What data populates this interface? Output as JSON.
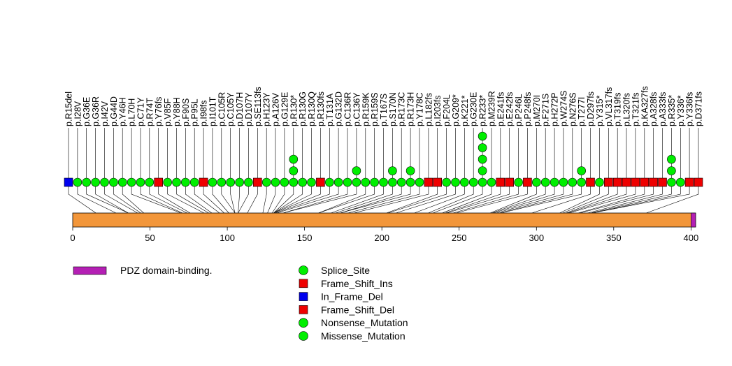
{
  "chart_data": {
    "type": "lollipop",
    "xlabel": "",
    "ylabel": "",
    "xlim": [
      0,
      403
    ],
    "ticks": [
      0,
      50,
      100,
      150,
      200,
      250,
      300,
      350,
      400
    ],
    "protein_length": 403,
    "domains": [
      {
        "name": "PDZ domain-binding.",
        "start": 400,
        "end": 403,
        "color": "#b41fb4"
      }
    ],
    "backbone_color": "#f2963a",
    "legend_mutations": [
      {
        "name": "Splice_Site",
        "shape": "circle",
        "color": "#00ee00"
      },
      {
        "name": "Frame_Shift_Ins",
        "shape": "square",
        "color": "#ee0000"
      },
      {
        "name": "In_Frame_Del",
        "shape": "square",
        "color": "#0000ee"
      },
      {
        "name": "Frame_Shift_Del",
        "shape": "square",
        "color": "#ee0000"
      },
      {
        "name": "Nonsense_Mutation",
        "shape": "circle",
        "color": "#00ee00"
      },
      {
        "name": "Missense_Mutation",
        "shape": "circle",
        "color": "#00ee00"
      }
    ],
    "mutations": [
      {
        "label": "p.R15del",
        "pos": 15,
        "type": "In_Frame_Del",
        "count": 1
      },
      {
        "label": "p.I28V",
        "pos": 28,
        "type": "Missense_Mutation",
        "count": 1
      },
      {
        "label": "p.G36E",
        "pos": 36,
        "type": "Missense_Mutation",
        "count": 1
      },
      {
        "label": "p.G36R",
        "pos": 36,
        "type": "Missense_Mutation",
        "count": 1
      },
      {
        "label": "p.I42V",
        "pos": 42,
        "type": "Missense_Mutation",
        "count": 1
      },
      {
        "label": "p.G44D",
        "pos": 44,
        "type": "Missense_Mutation",
        "count": 1
      },
      {
        "label": "p.Y46H",
        "pos": 46,
        "type": "Missense_Mutation",
        "count": 1
      },
      {
        "label": "p.L70H",
        "pos": 70,
        "type": "Missense_Mutation",
        "count": 1
      },
      {
        "label": "p.C71Y",
        "pos": 71,
        "type": "Missense_Mutation",
        "count": 1
      },
      {
        "label": "p.R74T",
        "pos": 74,
        "type": "Missense_Mutation",
        "count": 1
      },
      {
        "label": "p.Y76fs",
        "pos": 76,
        "type": "Frame_Shift_Del",
        "count": 1
      },
      {
        "label": "p.V85F",
        "pos": 85,
        "type": "Missense_Mutation",
        "count": 1
      },
      {
        "label": "p.Y88H",
        "pos": 88,
        "type": "Missense_Mutation",
        "count": 1
      },
      {
        "label": "p.F90S",
        "pos": 90,
        "type": "Missense_Mutation",
        "count": 1
      },
      {
        "label": "p.P95L",
        "pos": 95,
        "type": "Missense_Mutation",
        "count": 1
      },
      {
        "label": "p.I98fs",
        "pos": 98,
        "type": "Frame_Shift_Del",
        "count": 1
      },
      {
        "label": "p.I101T",
        "pos": 101,
        "type": "Missense_Mutation",
        "count": 1
      },
      {
        "label": "p.C105R",
        "pos": 105,
        "type": "Missense_Mutation",
        "count": 1
      },
      {
        "label": "p.C105Y",
        "pos": 105,
        "type": "Missense_Mutation",
        "count": 1
      },
      {
        "label": "p.D107H",
        "pos": 107,
        "type": "Missense_Mutation",
        "count": 1
      },
      {
        "label": "p.D107Y",
        "pos": 107,
        "type": "Missense_Mutation",
        "count": 1
      },
      {
        "label": "p.SE113fs",
        "pos": 113,
        "type": "Frame_Shift_Ins",
        "count": 1
      },
      {
        "label": "p.H123Y",
        "pos": 123,
        "type": "Missense_Mutation",
        "count": 1
      },
      {
        "label": "p.A126V",
        "pos": 126,
        "type": "Missense_Mutation",
        "count": 1
      },
      {
        "label": "p.G129E",
        "pos": 129,
        "type": "Missense_Mutation",
        "count": 1
      },
      {
        "label": "p.R130*",
        "pos": 130,
        "type": "Nonsense_Mutation",
        "count": 3
      },
      {
        "label": "p.R130G",
        "pos": 130,
        "type": "Missense_Mutation",
        "count": 1
      },
      {
        "label": "p.R130Q",
        "pos": 130,
        "type": "Missense_Mutation",
        "count": 1
      },
      {
        "label": "p.R130fs",
        "pos": 130,
        "type": "Frame_Shift_Del",
        "count": 1
      },
      {
        "label": "p.T131A",
        "pos": 131,
        "type": "Missense_Mutation",
        "count": 1
      },
      {
        "label": "p.G132D",
        "pos": 132,
        "type": "Missense_Mutation",
        "count": 1
      },
      {
        "label": "p.C136R",
        "pos": 136,
        "type": "Missense_Mutation",
        "count": 1
      },
      {
        "label": "p.C136Y",
        "pos": 136,
        "type": "Missense_Mutation",
        "count": 2
      },
      {
        "label": "p.R159K",
        "pos": 159,
        "type": "Missense_Mutation",
        "count": 1
      },
      {
        "label": "p.R159S",
        "pos": 159,
        "type": "Missense_Mutation",
        "count": 1
      },
      {
        "label": "p.T167S",
        "pos": 167,
        "type": "Missense_Mutation",
        "count": 1
      },
      {
        "label": "p.S170N",
        "pos": 170,
        "type": "Missense_Mutation",
        "count": 2
      },
      {
        "label": "p.R173C",
        "pos": 173,
        "type": "Missense_Mutation",
        "count": 1
      },
      {
        "label": "p.R173H",
        "pos": 173,
        "type": "Missense_Mutation",
        "count": 2
      },
      {
        "label": "p.Y178C",
        "pos": 178,
        "type": "Missense_Mutation",
        "count": 1
      },
      {
        "label": "p.L182fs",
        "pos": 182,
        "type": "Frame_Shift_Del",
        "count": 1
      },
      {
        "label": "p.I203fs",
        "pos": 203,
        "type": "Frame_Shift_Del",
        "count": 1
      },
      {
        "label": "p.F204L",
        "pos": 204,
        "type": "Missense_Mutation",
        "count": 1
      },
      {
        "label": "p.G209*",
        "pos": 209,
        "type": "Nonsense_Mutation",
        "count": 1
      },
      {
        "label": "p.K221*",
        "pos": 221,
        "type": "Nonsense_Mutation",
        "count": 1
      },
      {
        "label": "p.G230E",
        "pos": 230,
        "type": "Missense_Mutation",
        "count": 1
      },
      {
        "label": "p.R233*",
        "pos": 233,
        "type": "Nonsense_Mutation",
        "count": 5
      },
      {
        "label": "p.M239R",
        "pos": 239,
        "type": "Missense_Mutation",
        "count": 1
      },
      {
        "label": "p.E241fs",
        "pos": 241,
        "type": "Frame_Shift_Del",
        "count": 1
      },
      {
        "label": "p.E242fs",
        "pos": 242,
        "type": "Frame_Shift_Del",
        "count": 1
      },
      {
        "label": "p.P246L",
        "pos": 246,
        "type": "Missense_Mutation",
        "count": 1
      },
      {
        "label": "p.P248fs",
        "pos": 248,
        "type": "Frame_Shift_Del",
        "count": 1
      },
      {
        "label": "p.M270I",
        "pos": 270,
        "type": "Missense_Mutation",
        "count": 1
      },
      {
        "label": "p.F271S",
        "pos": 271,
        "type": "Missense_Mutation",
        "count": 1
      },
      {
        "label": "p.H272P",
        "pos": 272,
        "type": "Missense_Mutation",
        "count": 1
      },
      {
        "label": "p.W274S",
        "pos": 274,
        "type": "Missense_Mutation",
        "count": 1
      },
      {
        "label": "p.N276S",
        "pos": 276,
        "type": "Missense_Mutation",
        "count": 1
      },
      {
        "label": "p.T277I",
        "pos": 277,
        "type": "Missense_Mutation",
        "count": 2
      },
      {
        "label": "p.D297fs",
        "pos": 297,
        "type": "Frame_Shift_Del",
        "count": 1
      },
      {
        "label": "p.Y315*",
        "pos": 315,
        "type": "Nonsense_Mutation",
        "count": 1
      },
      {
        "label": "p.VL317fs",
        "pos": 317,
        "type": "Frame_Shift_Del",
        "count": 1
      },
      {
        "label": "p.T319fs",
        "pos": 319,
        "type": "Frame_Shift_Del",
        "count": 1
      },
      {
        "label": "p.L320fs",
        "pos": 320,
        "type": "Frame_Shift_Del",
        "count": 1
      },
      {
        "label": "p.T321fs",
        "pos": 321,
        "type": "Frame_Shift_Del",
        "count": 1
      },
      {
        "label": "p.KA327fs",
        "pos": 327,
        "type": "Frame_Shift_Del",
        "count": 1
      },
      {
        "label": "p.A328fs",
        "pos": 328,
        "type": "Frame_Shift_Del",
        "count": 1
      },
      {
        "label": "p.A333fs",
        "pos": 333,
        "type": "Frame_Shift_Del",
        "count": 1
      },
      {
        "label": "p.R335*",
        "pos": 335,
        "type": "Nonsense_Mutation",
        "count": 3
      },
      {
        "label": "p.Y336*",
        "pos": 336,
        "type": "Nonsense_Mutation",
        "count": 1
      },
      {
        "label": "p.Y336fs",
        "pos": 336,
        "type": "Frame_Shift_Del",
        "count": 1
      },
      {
        "label": "p.D371fs",
        "pos": 371,
        "type": "Frame_Shift_Del",
        "count": 1
      }
    ]
  }
}
